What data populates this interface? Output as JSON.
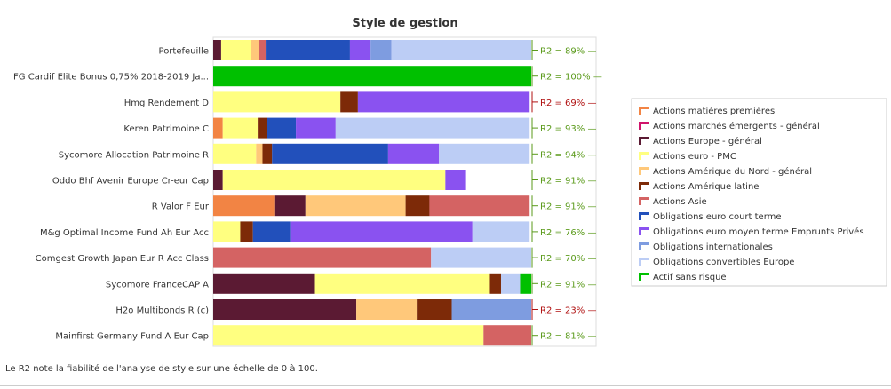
{
  "chart_data": {
    "type": "bar",
    "orientation": "horizontal",
    "stacked": true,
    "title": "Style de gestion",
    "legend_position": "right",
    "categories": [
      "Portefeuille",
      "FG Cardif Elite Bonus 0,75% 2018-2019 Ja...",
      "Hmg Rendement D",
      "Keren Patrimoine C",
      "Sycomore Allocation Patrimoine R",
      "Oddo Bhf Avenir Europe Cr-eur Cap",
      "R Valor F Eur",
      "M&g Optimal Income Fund Ah Eur Acc",
      "Comgest Growth Japan Eur R Acc Class",
      "Sycomore FranceCAP A",
      "H2o Multibonds R (c)",
      "Mainfirst Germany Fund A Eur Cap"
    ],
    "r2_labels": [
      "R2 = 89%",
      "R2 = 100%",
      "R2 = 69%",
      "R2 = 93%",
      "R2 = 94%",
      "R2 = 91%",
      "R2 = 91%",
      "R2 = 76%",
      "R2 = 70%",
      "R2 = 91%",
      "R2 = 23%",
      "R2 = 81%"
    ],
    "r2_colors": [
      "#5a9a1a",
      "#5a9a1a",
      "#b01010",
      "#5a9a1a",
      "#5a9a1a",
      "#5a9a1a",
      "#5a9a1a",
      "#5a9a1a",
      "#5a9a1a",
      "#5a9a1a",
      "#b01010",
      "#5a9a1a"
    ],
    "series": [
      {
        "name": "Actions matières premières",
        "color": "#f28444",
        "values": [
          0,
          0,
          0,
          3,
          0,
          0,
          19.5,
          0,
          0,
          0,
          0,
          0
        ]
      },
      {
        "name": "Actions marchés émergents - général",
        "color": "#d0146b",
        "values": [
          0,
          0,
          0,
          0,
          0,
          0,
          0,
          0,
          0,
          0,
          0,
          0
        ]
      },
      {
        "name": "Actions Europe - général",
        "color": "#5b1a33",
        "values": [
          2.5,
          0,
          0,
          0,
          0,
          3,
          9.5,
          0,
          0,
          32,
          45,
          0
        ]
      },
      {
        "name": "Actions euro - PMC",
        "color": "#ffff80",
        "values": [
          9.5,
          0,
          40,
          11,
          13.5,
          70,
          0,
          8.5,
          0,
          55,
          0,
          85
        ]
      },
      {
        "name": "Actions Amérique du Nord - général",
        "color": "#ffc87a",
        "values": [
          2.5,
          0,
          0,
          0,
          2,
          0,
          31.5,
          0,
          0,
          0,
          19,
          0
        ]
      },
      {
        "name": "Actions Amérique latine",
        "color": "#7d2a08",
        "values": [
          0,
          0,
          5.5,
          3,
          3,
          0,
          7.5,
          4,
          0,
          3.5,
          11,
          0
        ]
      },
      {
        "name": "Actions Asie",
        "color": "#d46363",
        "values": [
          2,
          0,
          0,
          0,
          0,
          0,
          31.5,
          0,
          68.5,
          0,
          0,
          15
        ]
      },
      {
        "name": "Obligations euro court terme",
        "color": "#2250bb",
        "values": [
          26.5,
          0,
          0,
          9,
          36.5,
          0,
          0,
          12,
          0,
          0,
          0,
          0
        ]
      },
      {
        "name": "Obligations euro moyen terme Emprunts Privés",
        "color": "#8a52f0",
        "values": [
          6.5,
          0,
          54,
          12.5,
          16,
          6.5,
          0,
          57,
          0,
          0,
          0,
          0
        ]
      },
      {
        "name": "Obligations internationales",
        "color": "#7e9ce0",
        "values": [
          6.5,
          0,
          0,
          0,
          0,
          0,
          0,
          0,
          0,
          0,
          25,
          0
        ]
      },
      {
        "name": "Obligations convertibles Europe",
        "color": "#bccdf5",
        "values": [
          44,
          0,
          0,
          61,
          28.5,
          0,
          0,
          18,
          31.5,
          6,
          0,
          0
        ]
      },
      {
        "name": "Actif sans risque",
        "color": "#00c000",
        "values": [
          0,
          100,
          0,
          0,
          0,
          0,
          0,
          0,
          0,
          3.5,
          0,
          0
        ]
      }
    ],
    "xlim": [
      0,
      100
    ]
  },
  "footnote": "Le R2 note la fiabilité de l'analyse de style sur une échelle de 0 à 100."
}
